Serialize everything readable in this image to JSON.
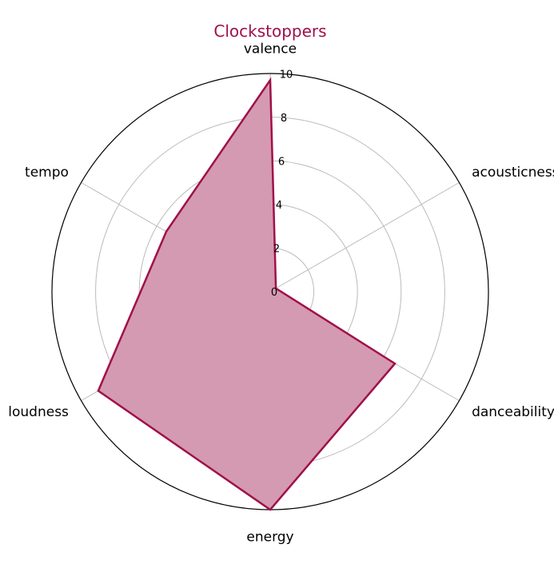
{
  "chart_data": {
    "type": "radar",
    "title": "Clockstoppers",
    "axes": [
      "valence",
      "acousticness",
      "danceability",
      "energy",
      "loudness",
      "tempo"
    ],
    "series": [
      {
        "values": [
          9.7,
          0.3,
          6.6,
          10.0,
          9.1,
          5.5
        ]
      }
    ],
    "r_ticks": [
      0,
      2,
      4,
      6,
      8,
      10
    ],
    "rlim": [
      0,
      10
    ],
    "grid": true,
    "colors": {
      "line": "#a0104a",
      "fill": "#d49ab1",
      "title": "#a0104a",
      "grid": "#bbbbbb",
      "outline": "#000000"
    }
  }
}
